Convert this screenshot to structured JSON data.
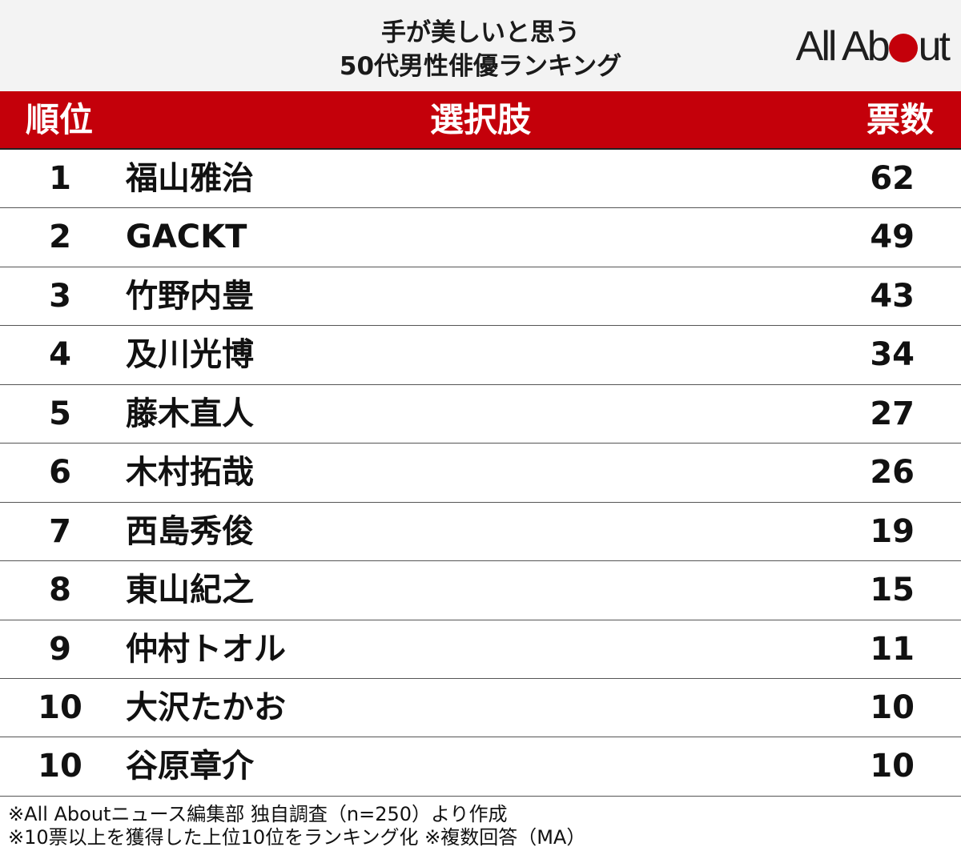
{
  "title": {
    "line1": "手が美しいと思う",
    "line2": "50代男性俳優ランキング"
  },
  "logo": {
    "prefix": "All Ab",
    "suffix": "ut",
    "accent_color": "#c4000a"
  },
  "chart_data": {
    "type": "table",
    "columns": [
      "順位",
      "選択肢",
      "票数"
    ],
    "rows": [
      {
        "rank": "1",
        "name": "福山雅治",
        "votes": "62"
      },
      {
        "rank": "2",
        "name": "GACKT",
        "votes": "49"
      },
      {
        "rank": "3",
        "name": "竹野内豊",
        "votes": "43"
      },
      {
        "rank": "4",
        "name": "及川光博",
        "votes": "34"
      },
      {
        "rank": "5",
        "name": "藤木直人",
        "votes": "27"
      },
      {
        "rank": "6",
        "name": "木村拓哉",
        "votes": "26"
      },
      {
        "rank": "7",
        "name": "西島秀俊",
        "votes": "19"
      },
      {
        "rank": "8",
        "name": "東山紀之",
        "votes": "15"
      },
      {
        "rank": "9",
        "name": "仲村トオル",
        "votes": "11"
      },
      {
        "rank": "10",
        "name": "大沢たかお",
        "votes": "10"
      },
      {
        "rank": "10",
        "name": "谷原章介",
        "votes": "10"
      }
    ]
  },
  "notes": [
    "※All Aboutニュース編集部 独自調査（n=250）より作成",
    "※10票以上を獲得した上位10位をランキング化 ※複数回答（MA）"
  ],
  "colors": {
    "header_bg": "#c4000a",
    "title_bg": "#f3f3f3"
  }
}
